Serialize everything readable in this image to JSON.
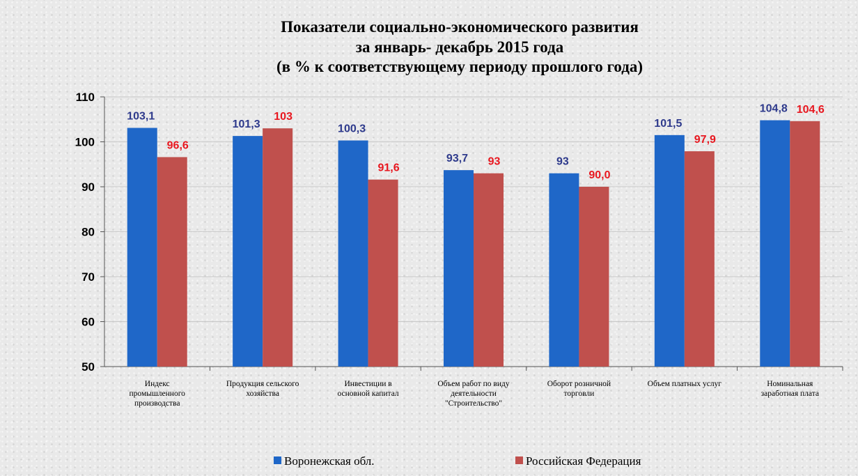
{
  "chart_data": {
    "type": "bar",
    "title": [
      "Показатели социально-экономического развития",
      "за январь- декабрь 2015 года",
      "(в % к соответствующему периоду прошлого года)"
    ],
    "categories": [
      [
        "Индекс",
        "промышленного",
        "производства"
      ],
      [
        "Продукция сельского",
        "хозяйства"
      ],
      [
        "Инвестиции в",
        "основной капитал"
      ],
      [
        "Объем работ по виду",
        "деятельности",
        "\"Строительство\""
      ],
      [
        "Оборот розничной",
        "торговли"
      ],
      [
        "Объем платных услуг"
      ],
      [
        "Номинальная",
        "заработная плата"
      ]
    ],
    "series": [
      {
        "name": "Воронежская обл.",
        "color": "#1f67c8",
        "label_color": "#2e3a8c",
        "values": [
          103.1,
          101.3,
          100.3,
          93.7,
          93,
          101.5,
          104.8
        ],
        "labels": [
          "103,1",
          "101,3",
          "100,3",
          "93,7",
          "93",
          "101,5",
          "104,8"
        ]
      },
      {
        "name": "Российская Федерация",
        "color": "#c0504d",
        "label_color": "#e8171f",
        "values": [
          96.6,
          103,
          91.6,
          93,
          90.0,
          97.9,
          104.6
        ],
        "labels": [
          "96,6",
          "103",
          "91,6",
          "93",
          "90,0",
          "97,9",
          "104,6"
        ]
      }
    ],
    "yticks": [
      "50",
      "60",
      "70",
      "80",
      "90",
      "100",
      "110"
    ],
    "ylim": [
      50,
      110
    ],
    "grid": true,
    "legend_position": "bottom"
  }
}
